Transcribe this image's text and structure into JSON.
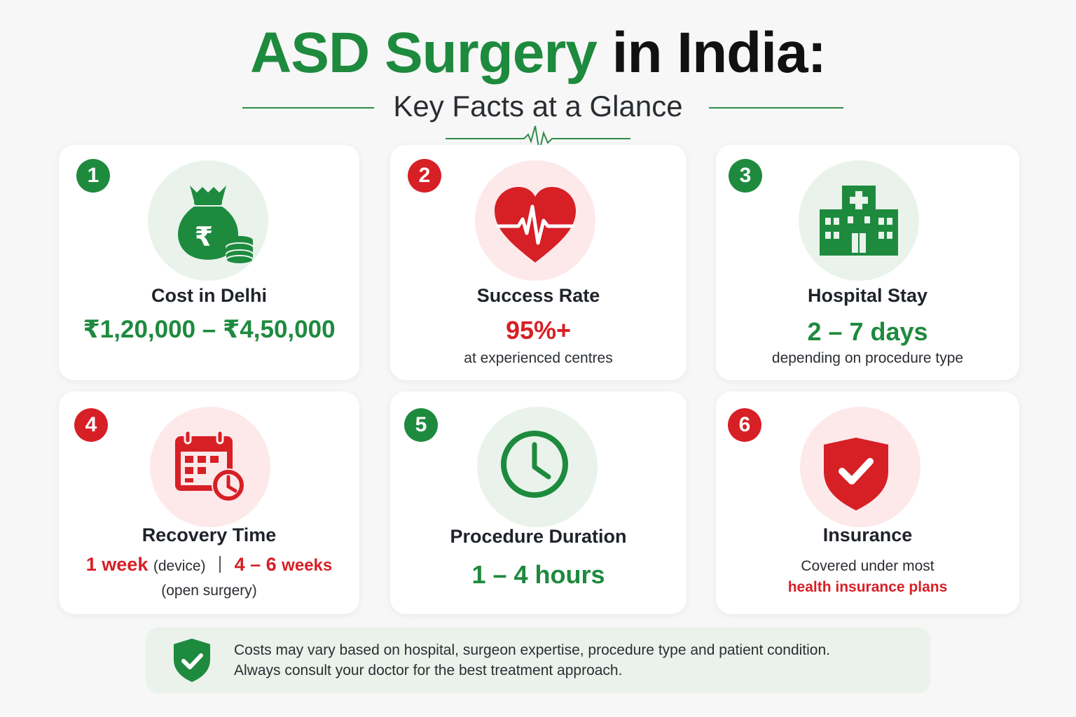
{
  "header": {
    "title_green": "ASD Surgery",
    "title_dark": "in India:",
    "subtitle": "Key Facts at a Glance"
  },
  "colors": {
    "green": "#1e8a3e",
    "red": "#d71f26",
    "green_tint": "#e9f3eb",
    "red_tint": "#fde9ea"
  },
  "cards": [
    {
      "number": "1",
      "icon": "money-bag-rupee-icon",
      "label": "Cost in Delhi",
      "value": "₹1,20,000 – ₹4,50,000"
    },
    {
      "number": "2",
      "icon": "heart-pulse-icon",
      "label": "Success Rate",
      "value": "95%+",
      "note": "at experienced centres"
    },
    {
      "number": "3",
      "icon": "hospital-icon",
      "label": "Hospital Stay",
      "value": "2 – 7 days",
      "note": "depending on procedure type"
    },
    {
      "number": "4",
      "icon": "calendar-clock-icon",
      "label": "Recovery Time",
      "value_a": "1 week",
      "note_a": "(device)",
      "value_b": "4 – 6",
      "value_b_unit": "weeks",
      "note_b": "(open surgery)"
    },
    {
      "number": "5",
      "icon": "clock-icon",
      "label": "Procedure Duration",
      "value": "1 – 4 hours"
    },
    {
      "number": "6",
      "icon": "shield-check-icon",
      "label": "Insurance",
      "note": "Covered under most",
      "note_highlight": "health insurance plans"
    }
  ],
  "footer": {
    "icon": "shield-check-icon",
    "line1": "Costs may vary based on hospital, surgeon expertise, procedure type and patient condition.",
    "line2": "Always consult your doctor for the best treatment approach."
  }
}
